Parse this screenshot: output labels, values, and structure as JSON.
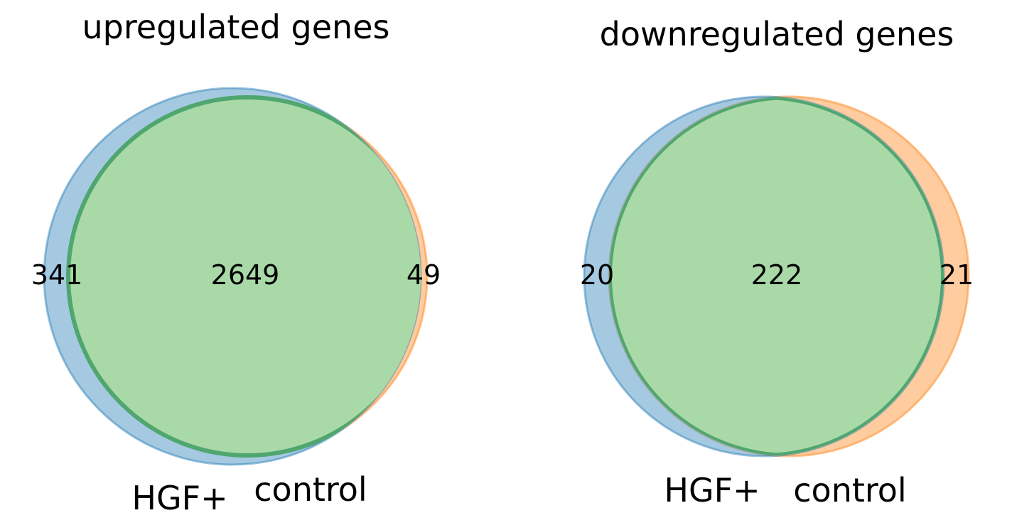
{
  "diagrams": [
    {
      "title": "upregulated genes",
      "set_labels": [
        "HGF+",
        "control"
      ],
      "counts": {
        "only_a": "341",
        "both": "2649",
        "only_b": "49"
      }
    },
    {
      "title": "downregulated genes",
      "set_labels": [
        "HGF+",
        "control"
      ],
      "counts": {
        "only_a": "20",
        "both": "222",
        "only_b": "21"
      }
    }
  ],
  "colors": {
    "set_a": "#1f77b4",
    "set_b": "#ff7f0e",
    "overlap": "#aad9a8",
    "overlap_edge": "#4fa66e"
  }
}
